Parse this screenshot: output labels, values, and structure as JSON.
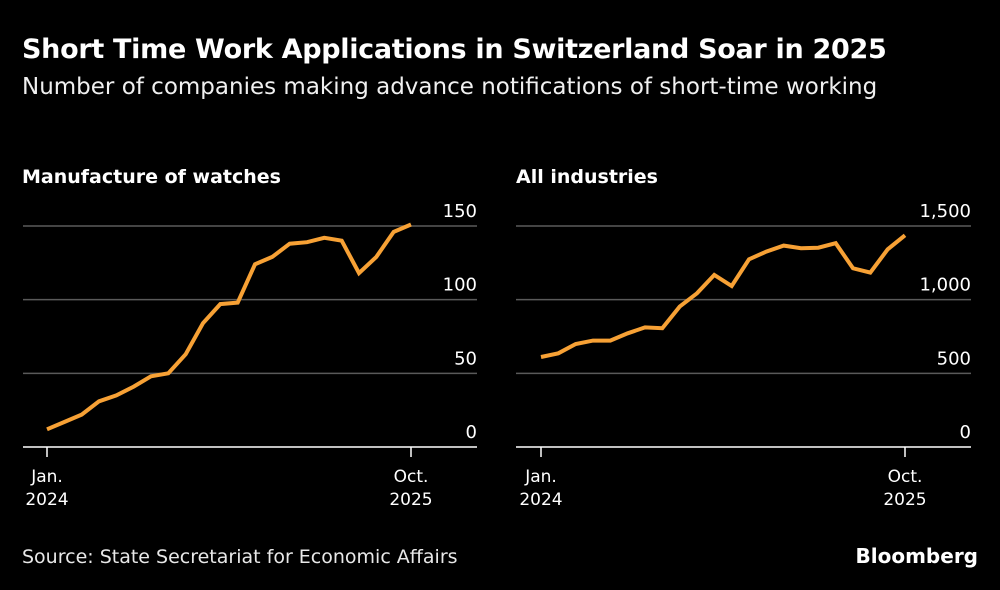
{
  "header": {
    "title": "Short Time Work Applications in Switzerland Soar in 2025",
    "subtitle": "Number of companies making advance notifications of short-time working"
  },
  "footer": {
    "source": "Source: State Secretariat for Economic Affairs",
    "brand": "Bloomberg"
  },
  "colors": {
    "line": "#f7a135",
    "gridline": "#5a5a5a",
    "axis": "#ffffff",
    "background": "#000000"
  },
  "chart_data": [
    {
      "type": "line",
      "title": "Manufacture of watches",
      "xlabel": "",
      "ylabel": "",
      "x": [
        "Jan 2024",
        "Feb 2024",
        "Mar 2024",
        "Apr 2024",
        "May 2024",
        "Jun 2024",
        "Jul 2024",
        "Aug 2024",
        "Sep 2024",
        "Oct 2024",
        "Nov 2024",
        "Dec 2024",
        "Jan 2025",
        "Feb 2025",
        "Mar 2025",
        "Apr 2025",
        "May 2025",
        "Jun 2025",
        "Jul 2025",
        "Aug 2025",
        "Sep 2025",
        "Oct 2025"
      ],
      "series": [
        {
          "name": "Manufacture of watches",
          "values": [
            12,
            17,
            22,
            31,
            35,
            41,
            48,
            50,
            63,
            84,
            97,
            98,
            124,
            129,
            138,
            139,
            142,
            140,
            118,
            129,
            146,
            151
          ]
        }
      ],
      "x_tick_labels": [
        {
          "line1": "Jan.",
          "line2": "2024",
          "index": 0
        },
        {
          "line1": "Oct.",
          "line2": "2025",
          "index": 21
        }
      ],
      "y_ticks": [
        0,
        50,
        100,
        150
      ],
      "y_tick_labels": [
        "0",
        "50",
        "100",
        "150"
      ],
      "ylim": [
        0,
        150
      ],
      "grid": true,
      "y_axis_side": "right"
    },
    {
      "type": "line",
      "title": "All industries",
      "xlabel": "",
      "ylabel": "",
      "x": [
        "Jan 2024",
        "Feb 2024",
        "Mar 2024",
        "Apr 2024",
        "May 2024",
        "Jun 2024",
        "Jul 2024",
        "Aug 2024",
        "Sep 2024",
        "Oct 2024",
        "Nov 2024",
        "Dec 2024",
        "Jan 2025",
        "Feb 2025",
        "Mar 2025",
        "Apr 2025",
        "May 2025",
        "Jun 2025",
        "Jul 2025",
        "Aug 2025",
        "Sep 2025",
        "Oct 2025"
      ],
      "series": [
        {
          "name": "All industries",
          "values": [
            611,
            636,
            699,
            722,
            722,
            772,
            812,
            806,
            953,
            1043,
            1168,
            1093,
            1274,
            1326,
            1367,
            1349,
            1353,
            1383,
            1213,
            1184,
            1342,
            1437
          ]
        }
      ],
      "x_tick_labels": [
        {
          "line1": "Jan.",
          "line2": "2024",
          "index": 0
        },
        {
          "line1": "Oct.",
          "line2": "2025",
          "index": 21
        }
      ],
      "y_ticks": [
        0,
        500,
        1000,
        1500
      ],
      "y_tick_labels": [
        "0",
        "500",
        "1,000",
        "1,500"
      ],
      "ylim": [
        0,
        1500
      ],
      "grid": true,
      "y_axis_side": "right"
    }
  ]
}
